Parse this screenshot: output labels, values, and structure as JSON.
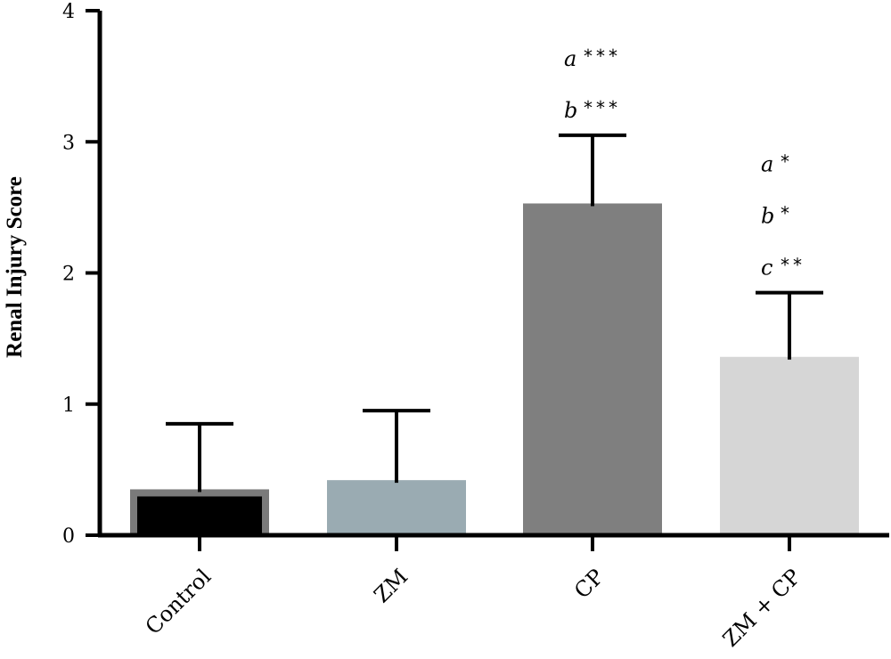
{
  "chart_data": {
    "type": "bar",
    "title": "",
    "xlabel": "",
    "ylabel": "Renal Injury Score",
    "ylim": [
      0,
      4
    ],
    "yticks": [
      "0",
      "1",
      "2",
      "3",
      "4"
    ],
    "grid": false,
    "categories": [
      "Control",
      "ZM",
      "CP",
      "ZM + CP"
    ],
    "values": [
      0.35,
      0.42,
      2.53,
      1.36
    ],
    "errors": [
      0.5,
      0.53,
      0.52,
      0.49
    ],
    "colors": [
      "#000000",
      "#9aabb2",
      "#7f7f7f",
      "#d6d6d6"
    ],
    "annotations": [
      {
        "category": "CP",
        "lines": [
          {
            "letter": "a",
            "stars": "***"
          },
          {
            "letter": "b",
            "stars": "***"
          }
        ]
      },
      {
        "category": "ZM + CP",
        "lines": [
          {
            "letter": "a",
            "stars": "*"
          },
          {
            "letter": "b",
            "stars": "*"
          },
          {
            "letter": "c",
            "stars": "**"
          }
        ]
      }
    ]
  }
}
